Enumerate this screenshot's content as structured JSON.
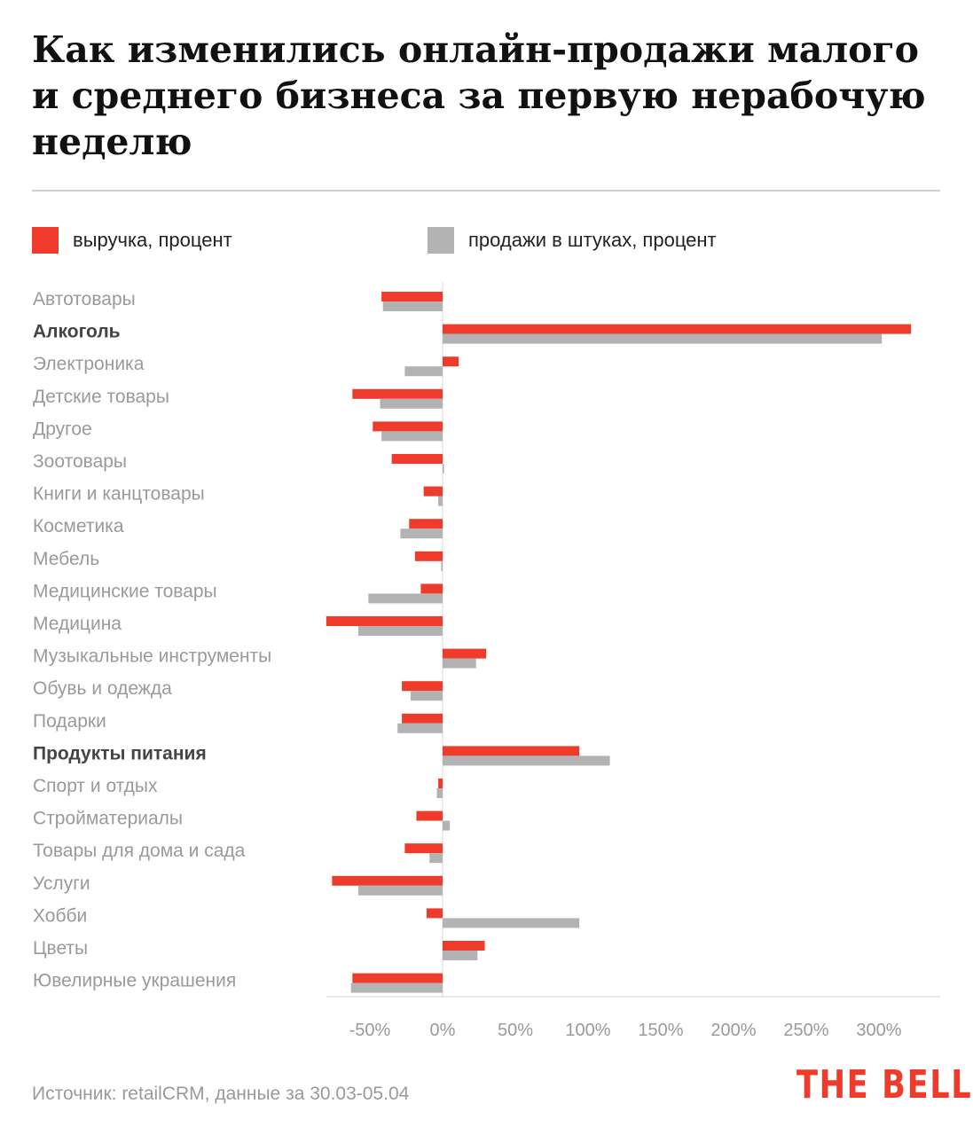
{
  "title": "Как изменились онлайн-продажи малого и среднего бизнеса за первую нерабочую неделю",
  "legend": [
    {
      "label": "выручка, процент",
      "color": "#ef3b2c"
    },
    {
      "label": "продажи в штуках, процент",
      "color": "#b3b3b3"
    }
  ],
  "source": "Источник: retailCRM, данные за 30.03-05.04",
  "logo": "THE BELL",
  "chart_data": {
    "type": "bar",
    "orientation": "horizontal",
    "xlim": [
      -80,
      330
    ],
    "x_ticks": [
      -50,
      0,
      50,
      100,
      150,
      200,
      250,
      300
    ],
    "x_tick_labels": [
      "-50%",
      "0%",
      "50%",
      "100%",
      "150%",
      "200%",
      "250%",
      "300%"
    ],
    "categories": [
      "Автотовары",
      "Алкоголь",
      "Электроника",
      "Детские товары",
      "Другое",
      "Зоотовары",
      "Книги и канцтовары",
      "Косметика",
      "Мебель",
      "Медицинские товары",
      "Медицина",
      "Музыкальные инструменты",
      "Обувь и одежда",
      "Подарки",
      "Продукты питания",
      "Спорт и отдых",
      "Стройматериалы",
      "Товары для дома и сада",
      "Услуги",
      "Хобби",
      "Цветы",
      "Ювелирные украшения"
    ],
    "highlighted": [
      "Алкоголь",
      "Продукты питания"
    ],
    "series": [
      {
        "name": "выручка, процент",
        "color": "#ef3b2c",
        "values": [
          -42,
          322,
          11,
          -62,
          -48,
          -35,
          -13,
          -23,
          -19,
          -15,
          -80,
          30,
          -28,
          -28,
          94,
          -3,
          -18,
          -26,
          -76,
          -11,
          29,
          -62
        ]
      },
      {
        "name": "продажи в штуках, процент",
        "color": "#b3b3b3",
        "values": [
          -41,
          302,
          -26,
          -43,
          -42,
          1,
          -3,
          -29,
          -1,
          -51,
          -58,
          23,
          -22,
          -31,
          115,
          -4,
          5,
          -9,
          -58,
          94,
          24,
          -63
        ]
      }
    ]
  }
}
